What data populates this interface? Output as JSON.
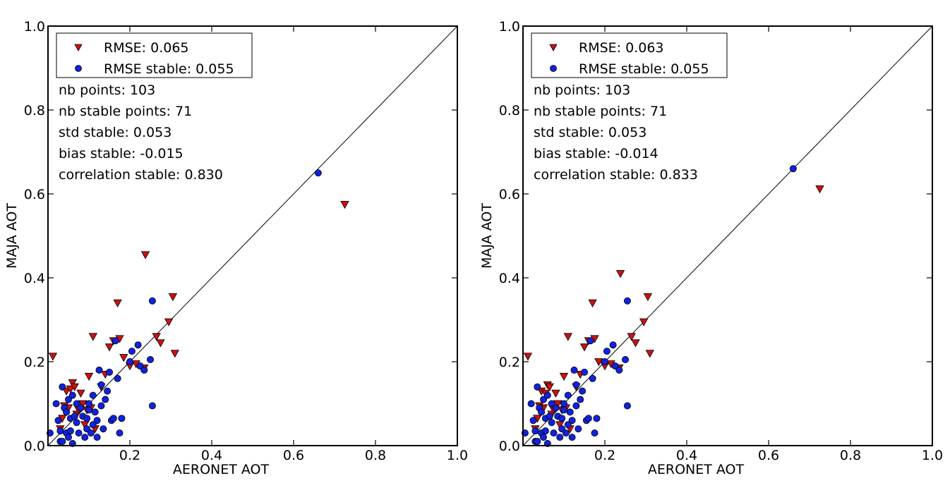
{
  "chart_data": [
    {
      "type": "scatter",
      "xlabel": "AERONET AOT",
      "ylabel": "MAJA AOT",
      "xlim": [
        0,
        1.0
      ],
      "ylim": [
        0,
        1.0
      ],
      "x_ticks": [
        "0.2",
        "0.4",
        "0.6",
        "0.8",
        "1.0"
      ],
      "y_ticks": [
        "0.0",
        "0.2",
        "0.4",
        "0.6",
        "0.8",
        "1.0"
      ],
      "identity_line": true,
      "legend_position": "top-left",
      "legend": [
        "RMSE: 0.065",
        "RMSE stable: 0.055"
      ],
      "stats": [
        "nb points: 103",
        "nb stable points: 71",
        "std stable: 0.053",
        "bias stable: -0.015",
        "correlation stable: 0.830"
      ],
      "series": [
        {
          "name": "RMSE: 0.065",
          "marker": "triangle-down",
          "color": "#cc1111",
          "points": [
            [
              0.012,
              0.213
            ],
            [
              0.03,
              0.04
            ],
            [
              0.035,
              0.065
            ],
            [
              0.04,
              0.095
            ],
            [
              0.045,
              0.13
            ],
            [
              0.05,
              0.09
            ],
            [
              0.055,
              0.135
            ],
            [
              0.06,
              0.15
            ],
            [
              0.065,
              0.14
            ],
            [
              0.07,
              0.075
            ],
            [
              0.075,
              0.085
            ],
            [
              0.08,
              0.125
            ],
            [
              0.085,
              0.1
            ],
            [
              0.09,
              0.05
            ],
            [
              0.095,
              0.085
            ],
            [
              0.1,
              0.165
            ],
            [
              0.105,
              0.09
            ],
            [
              0.11,
              0.26
            ],
            [
              0.115,
              0.04
            ],
            [
              0.13,
              0.14
            ],
            [
              0.14,
              0.17
            ],
            [
              0.15,
              0.235
            ],
            [
              0.16,
              0.25
            ],
            [
              0.17,
              0.34
            ],
            [
              0.175,
              0.255
            ],
            [
              0.185,
              0.21
            ],
            [
              0.2,
              0.19
            ],
            [
              0.215,
              0.195
            ],
            [
              0.235,
              0.185
            ],
            [
              0.238,
              0.455
            ],
            [
              0.265,
              0.26
            ],
            [
              0.275,
              0.245
            ],
            [
              0.295,
              0.295
            ],
            [
              0.305,
              0.355
            ],
            [
              0.31,
              0.22
            ],
            [
              0.725,
              0.575
            ]
          ]
        },
        {
          "name": "RMSE stable: 0.055",
          "marker": "circle",
          "color": "#1122dd",
          "points": [
            [
              0.005,
              0.03
            ],
            [
              0.02,
              0.1
            ],
            [
              0.025,
              0.06
            ],
            [
              0.03,
              0.01
            ],
            [
              0.03,
              0.035
            ],
            [
              0.035,
              0.14
            ],
            [
              0.035,
              0.01
            ],
            [
              0.04,
              0.09
            ],
            [
              0.045,
              0.03
            ],
            [
              0.045,
              0.08
            ],
            [
              0.05,
              0.11
            ],
            [
              0.05,
              0.02
            ],
            [
              0.055,
              0.065
            ],
            [
              0.055,
              0.035
            ],
            [
              0.06,
              0.12
            ],
            [
              0.06,
              0.005
            ],
            [
              0.065,
              0.07
            ],
            [
              0.07,
              0.055
            ],
            [
              0.07,
              0.1
            ],
            [
              0.075,
              0.03
            ],
            [
              0.08,
              0.09
            ],
            [
              0.085,
              0.07
            ],
            [
              0.09,
              0.02
            ],
            [
              0.095,
              0.04
            ],
            [
              0.095,
              0.065
            ],
            [
              0.1,
              0.1
            ],
            [
              0.1,
              0.085
            ],
            [
              0.105,
              0.03
            ],
            [
              0.11,
              0.12
            ],
            [
              0.11,
              0.05
            ],
            [
              0.115,
              0.08
            ],
            [
              0.12,
              0.06
            ],
            [
              0.12,
              0.02
            ],
            [
              0.125,
              0.18
            ],
            [
              0.13,
              0.145
            ],
            [
              0.13,
              0.095
            ],
            [
              0.135,
              0.04
            ],
            [
              0.14,
              0.11
            ],
            [
              0.145,
              0.13
            ],
            [
              0.15,
              0.175
            ],
            [
              0.155,
              0.06
            ],
            [
              0.16,
              0.065
            ],
            [
              0.165,
              0.25
            ],
            [
              0.17,
              0.16
            ],
            [
              0.175,
              0.03
            ],
            [
              0.18,
              0.065
            ],
            [
              0.2,
              0.2
            ],
            [
              0.205,
              0.225
            ],
            [
              0.22,
              0.24
            ],
            [
              0.225,
              0.19
            ],
            [
              0.235,
              0.18
            ],
            [
              0.25,
              0.205
            ],
            [
              0.255,
              0.345
            ],
            [
              0.255,
              0.095
            ],
            [
              0.66,
              0.65
            ]
          ]
        }
      ]
    },
    {
      "type": "scatter",
      "xlabel": "AERONET AOT",
      "ylabel": "MAJA AOT",
      "xlim": [
        0,
        1.0
      ],
      "ylim": [
        0,
        1.0
      ],
      "x_ticks": [
        "0.2",
        "0.4",
        "0.6",
        "0.8",
        "1.0"
      ],
      "y_ticks": [
        "0.0",
        "0.2",
        "0.4",
        "0.6",
        "0.8",
        "1.0"
      ],
      "identity_line": true,
      "legend_position": "top-left",
      "legend": [
        "RMSE: 0.063",
        "RMSE stable: 0.055"
      ],
      "stats": [
        "nb points: 103",
        "nb stable points: 71",
        "std stable: 0.053",
        "bias stable: -0.014",
        "correlation stable: 0.833"
      ],
      "series": [
        {
          "name": "RMSE: 0.063",
          "marker": "triangle-down",
          "color": "#cc1111",
          "points": [
            [
              0.012,
              0.213
            ],
            [
              0.03,
              0.04
            ],
            [
              0.035,
              0.065
            ],
            [
              0.04,
              0.095
            ],
            [
              0.045,
              0.13
            ],
            [
              0.05,
              0.09
            ],
            [
              0.055,
              0.125
            ],
            [
              0.06,
              0.145
            ],
            [
              0.065,
              0.14
            ],
            [
              0.07,
              0.075
            ],
            [
              0.075,
              0.085
            ],
            [
              0.08,
              0.125
            ],
            [
              0.085,
              0.1
            ],
            [
              0.09,
              0.05
            ],
            [
              0.095,
              0.085
            ],
            [
              0.1,
              0.165
            ],
            [
              0.105,
              0.09
            ],
            [
              0.11,
              0.26
            ],
            [
              0.115,
              0.04
            ],
            [
              0.13,
              0.14
            ],
            [
              0.14,
              0.17
            ],
            [
              0.15,
              0.235
            ],
            [
              0.16,
              0.25
            ],
            [
              0.17,
              0.34
            ],
            [
              0.175,
              0.255
            ],
            [
              0.185,
              0.2
            ],
            [
              0.2,
              0.19
            ],
            [
              0.215,
              0.195
            ],
            [
              0.235,
              0.185
            ],
            [
              0.238,
              0.41
            ],
            [
              0.265,
              0.26
            ],
            [
              0.275,
              0.245
            ],
            [
              0.295,
              0.295
            ],
            [
              0.305,
              0.355
            ],
            [
              0.31,
              0.22
            ],
            [
              0.725,
              0.612
            ]
          ]
        },
        {
          "name": "RMSE stable: 0.055",
          "marker": "circle",
          "color": "#1122dd",
          "points": [
            [
              0.005,
              0.03
            ],
            [
              0.02,
              0.1
            ],
            [
              0.025,
              0.06
            ],
            [
              0.03,
              0.01
            ],
            [
              0.03,
              0.035
            ],
            [
              0.035,
              0.14
            ],
            [
              0.035,
              0.01
            ],
            [
              0.04,
              0.09
            ],
            [
              0.045,
              0.03
            ],
            [
              0.045,
              0.08
            ],
            [
              0.05,
              0.11
            ],
            [
              0.05,
              0.02
            ],
            [
              0.055,
              0.065
            ],
            [
              0.055,
              0.035
            ],
            [
              0.06,
              0.12
            ],
            [
              0.06,
              0.005
            ],
            [
              0.065,
              0.07
            ],
            [
              0.07,
              0.055
            ],
            [
              0.07,
              0.1
            ],
            [
              0.075,
              0.03
            ],
            [
              0.08,
              0.09
            ],
            [
              0.085,
              0.07
            ],
            [
              0.09,
              0.02
            ],
            [
              0.095,
              0.04
            ],
            [
              0.095,
              0.065
            ],
            [
              0.1,
              0.1
            ],
            [
              0.1,
              0.085
            ],
            [
              0.105,
              0.03
            ],
            [
              0.11,
              0.12
            ],
            [
              0.11,
              0.05
            ],
            [
              0.115,
              0.08
            ],
            [
              0.12,
              0.06
            ],
            [
              0.12,
              0.02
            ],
            [
              0.125,
              0.18
            ],
            [
              0.13,
              0.145
            ],
            [
              0.13,
              0.095
            ],
            [
              0.135,
              0.04
            ],
            [
              0.14,
              0.11
            ],
            [
              0.145,
              0.13
            ],
            [
              0.15,
              0.175
            ],
            [
              0.155,
              0.06
            ],
            [
              0.16,
              0.065
            ],
            [
              0.165,
              0.25
            ],
            [
              0.17,
              0.16
            ],
            [
              0.175,
              0.03
            ],
            [
              0.18,
              0.065
            ],
            [
              0.2,
              0.2
            ],
            [
              0.205,
              0.225
            ],
            [
              0.22,
              0.24
            ],
            [
              0.225,
              0.19
            ],
            [
              0.235,
              0.18
            ],
            [
              0.25,
              0.205
            ],
            [
              0.255,
              0.345
            ],
            [
              0.255,
              0.095
            ],
            [
              0.66,
              0.66
            ]
          ]
        }
      ]
    }
  ]
}
